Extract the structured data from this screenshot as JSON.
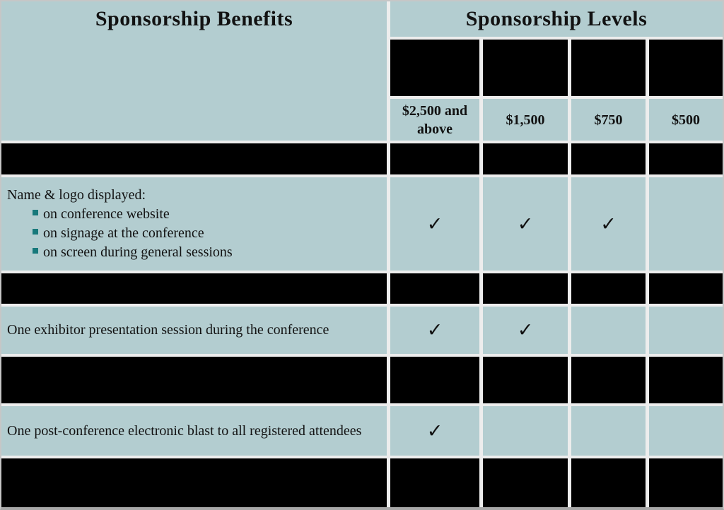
{
  "header": {
    "benefits": "Sponsorship Benefits",
    "levels": "Sponsorship Levels"
  },
  "levels": {
    "prices": [
      "$2,500 and above",
      "$1,500",
      "$750",
      "$500"
    ],
    "names_redacted": true
  },
  "benefit_rows": [
    {
      "label": "Name & logo displayed:",
      "bullets": [
        "on conference website",
        "on signage at the conference",
        "on screen during general sessions"
      ],
      "checks": [
        "✓",
        "✓",
        "✓",
        ""
      ]
    },
    {
      "label": "One exhibitor presentation session during the conference",
      "bullets": [],
      "checks": [
        "✓",
        "✓",
        "",
        ""
      ]
    },
    {
      "label": "One post-conference electronic blast to all registered attendees",
      "bullets": [],
      "checks": [
        "✓",
        "",
        "",
        ""
      ]
    }
  ],
  "glyphs": {
    "check": "✓",
    "bullet": "square-bullet"
  },
  "colors": {
    "cell_bg": "#b3cdd0",
    "bullet": "#17797b",
    "redacted": "#000000",
    "gridline": "#ededed",
    "text": "#121212"
  }
}
